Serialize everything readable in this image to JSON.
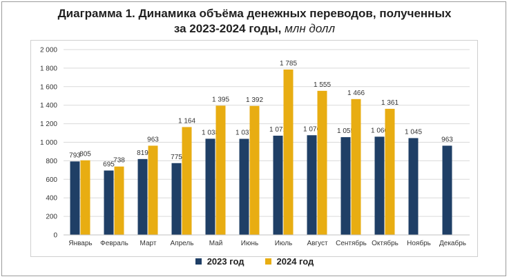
{
  "title": {
    "line1": "Диаграмма 1. Динамика объёма денежных переводов, полученных",
    "line2_main": "за 2023-2024 годы,",
    "line2_unit": "млн долл"
  },
  "colors": {
    "series_2023": "#1f3f66",
    "series_2024": "#e8ad12",
    "grid": "#d9d9d9",
    "text": "#333333"
  },
  "chart_data": {
    "type": "bar",
    "categories": [
      "Январь",
      "Февраль",
      "Март",
      "Апрель",
      "Май",
      "Июнь",
      "Июль",
      "Август",
      "Сентябрь",
      "Октябрь",
      "Ноябрь",
      "Декабрь"
    ],
    "series": [
      {
        "name": "2023 год",
        "values": [
          793,
          695,
          819,
          775,
          1038,
          1037,
          1071,
          1076,
          1055,
          1060,
          1045,
          963
        ]
      },
      {
        "name": "2024 год",
        "values": [
          805,
          738,
          963,
          1164,
          1395,
          1392,
          1785,
          1555,
          1466,
          1361,
          null,
          null
        ]
      }
    ],
    "data_labels": [
      [
        "793",
        "695",
        "819",
        "775",
        "1 038",
        "1 037",
        "1 071",
        "1 076",
        "1 055",
        "1 060",
        "1 045",
        "963"
      ],
      [
        "805",
        "738",
        "963",
        "1 164",
        "1 395",
        "1 392",
        "1 785",
        "1 555",
        "1 466",
        "1 361",
        "",
        ""
      ]
    ],
    "yticks": [
      "0",
      "200",
      "400",
      "600",
      "800",
      "1 000",
      "1 200",
      "1 400",
      "1 600",
      "1 800",
      "2 000"
    ],
    "ylim": [
      0,
      2000
    ],
    "grid": true,
    "legend_position": "bottom"
  }
}
